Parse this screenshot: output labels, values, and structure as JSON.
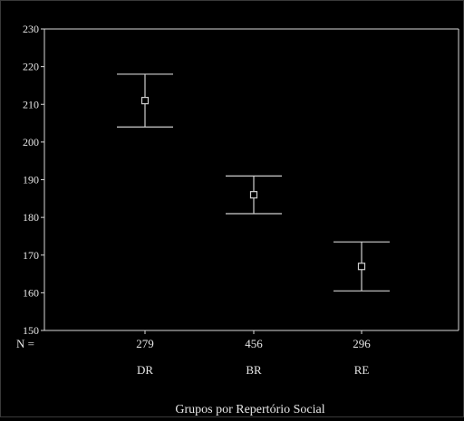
{
  "chart_data": {
    "type": "errorbar",
    "title": "",
    "xlabel": "Grupos por Repertório Social",
    "ylabel": "",
    "n_prefix": "N =",
    "categories": [
      "DR",
      "BR",
      "RE"
    ],
    "n": [
      "279",
      "456",
      "296"
    ],
    "means": [
      211,
      186,
      167
    ],
    "upper": [
      218,
      191,
      173.5
    ],
    "lower": [
      204,
      181,
      160.5
    ],
    "ylim": [
      150,
      230
    ],
    "yticks": [
      150,
      160,
      170,
      180,
      190,
      200,
      210,
      220,
      230
    ],
    "grid": false,
    "colors": {
      "background": "#000000",
      "axis": "#d9d9d9",
      "series": "#cfcfcf",
      "text": "#e6e6e6"
    }
  }
}
